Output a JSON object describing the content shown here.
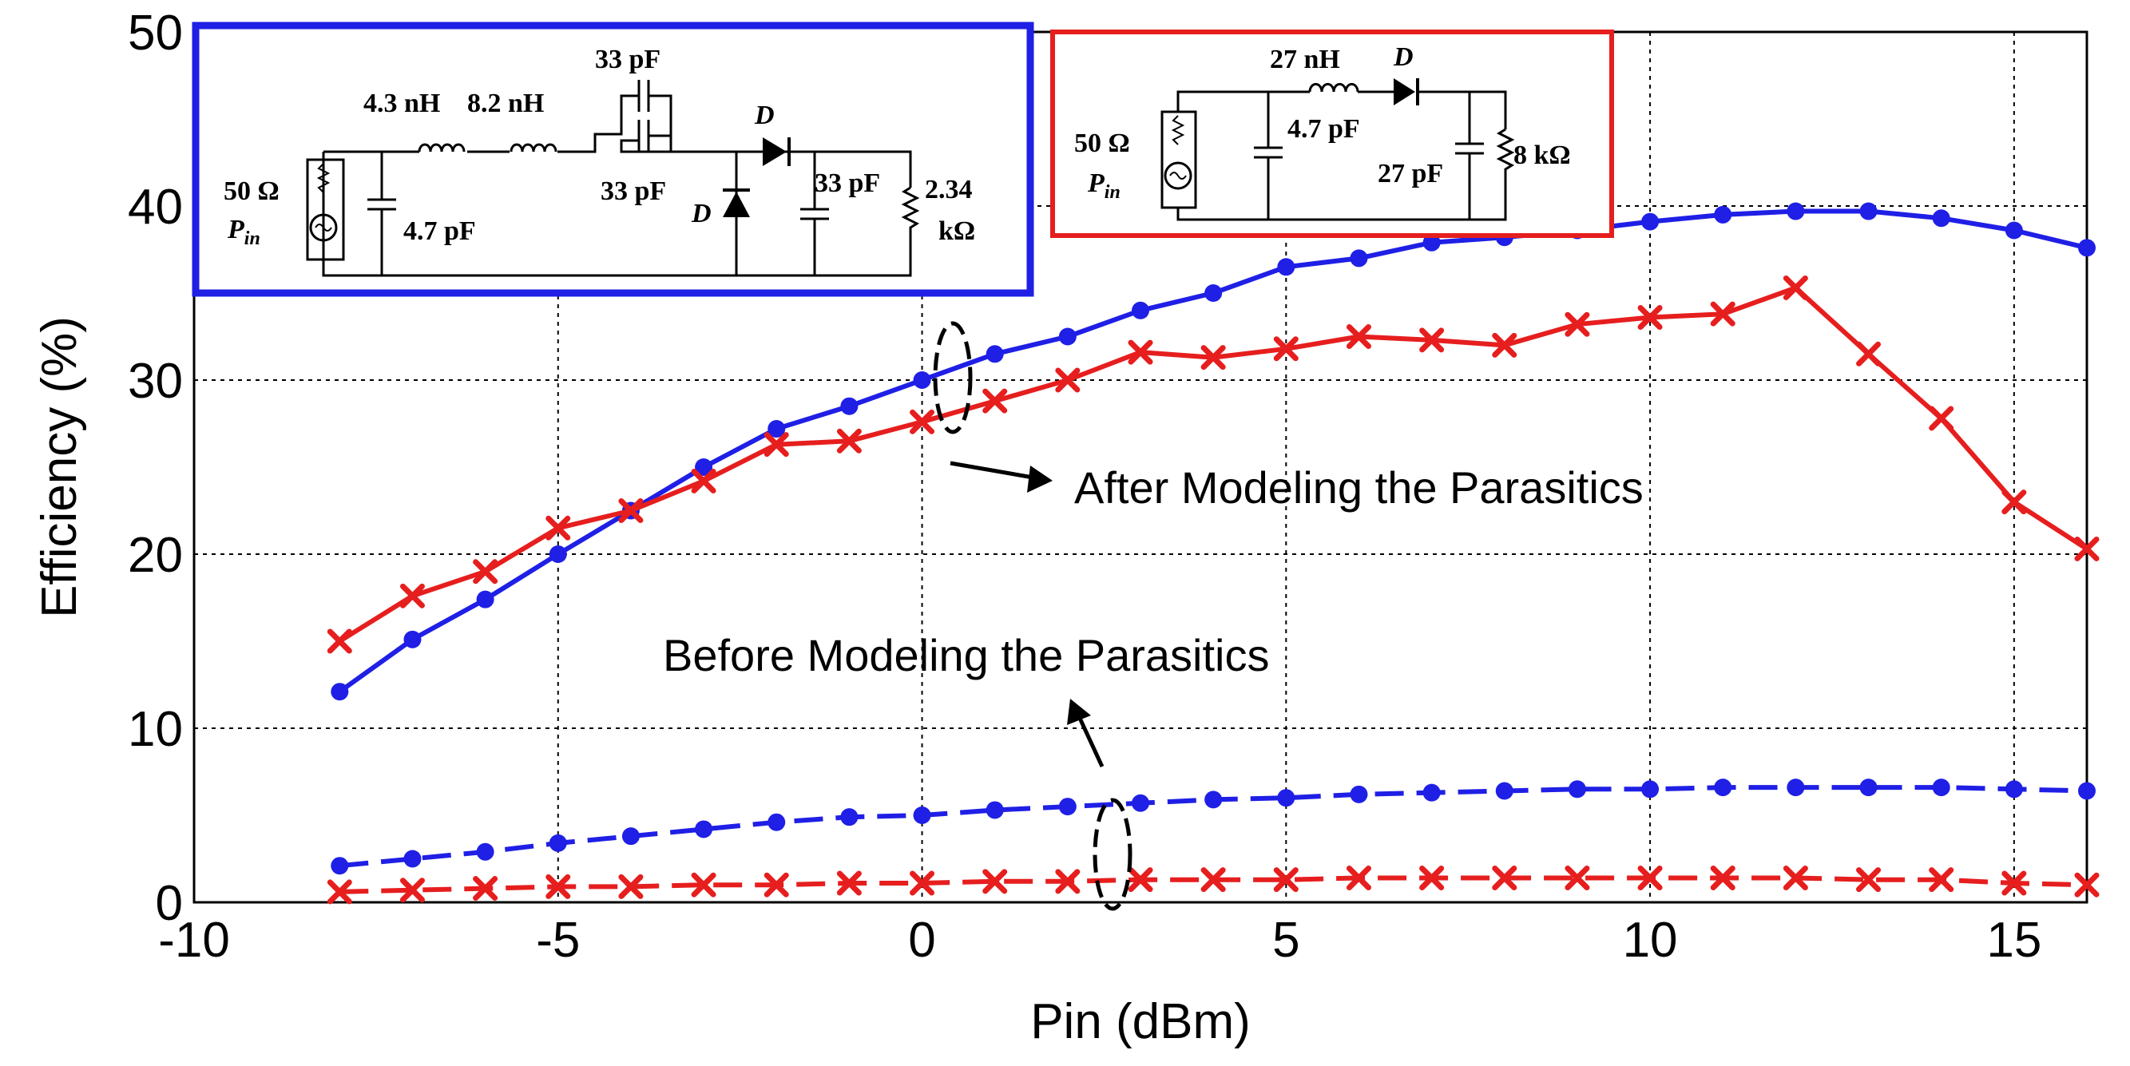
{
  "chart_data": {
    "type": "line",
    "xlabel": "Pin (dBm)",
    "ylabel": "Efficiency (%)",
    "xlim": [
      -10,
      16
    ],
    "ylim": [
      0,
      50
    ],
    "xticks": [
      -10,
      -5,
      0,
      5,
      10,
      15
    ],
    "yticks": [
      0,
      10,
      20,
      30,
      40,
      50
    ],
    "grid": true,
    "x": [
      -8,
      -7,
      -6,
      -5,
      -4,
      -3,
      -2,
      -1,
      0,
      1,
      2,
      3,
      4,
      5,
      6,
      7,
      8,
      9,
      10,
      11,
      12,
      13,
      14,
      15,
      16
    ],
    "series": [
      {
        "name": "After Modeling the Parasitics - circuit 1 (blue)",
        "color": "#1f1fe6",
        "line": "solid",
        "marker": "dot",
        "values": [
          12.1,
          15.1,
          17.4,
          20.0,
          22.5,
          25.0,
          27.2,
          28.5,
          30.0,
          31.5,
          32.5,
          34.0,
          35.0,
          36.5,
          37.0,
          37.9,
          38.2,
          38.6,
          39.1,
          39.5,
          39.7,
          39.7,
          39.3,
          38.6,
          37.6
        ]
      },
      {
        "name": "After Modeling the Parasitics - circuit 2 (red)",
        "color": "#e61e1e",
        "line": "solid",
        "marker": "x",
        "values": [
          15.0,
          17.6,
          19.0,
          21.5,
          22.5,
          24.2,
          26.3,
          26.5,
          27.6,
          28.8,
          30.0,
          31.6,
          31.3,
          31.8,
          32.5,
          32.3,
          32.0,
          33.2,
          33.6,
          33.8,
          35.3,
          31.5,
          27.8,
          23.0,
          20.3
        ]
      },
      {
        "name": "Before Modeling the Parasitics - circuit 1 (blue)",
        "color": "#1f1fe6",
        "line": "dashed",
        "marker": "dot",
        "values": [
          2.1,
          2.5,
          2.9,
          3.4,
          3.8,
          4.2,
          4.6,
          4.9,
          5.0,
          5.3,
          5.5,
          5.7,
          5.9,
          6.0,
          6.2,
          6.3,
          6.4,
          6.5,
          6.5,
          6.6,
          6.6,
          6.6,
          6.6,
          6.5,
          6.4
        ]
      },
      {
        "name": "Before Modeling the Parasitics - circuit 2 (red)",
        "color": "#e61e1e",
        "line": "dashed",
        "marker": "x",
        "values": [
          0.6,
          0.7,
          0.8,
          0.9,
          0.9,
          1.0,
          1.0,
          1.1,
          1.1,
          1.2,
          1.2,
          1.3,
          1.3,
          1.3,
          1.4,
          1.4,
          1.4,
          1.4,
          1.4,
          1.4,
          1.4,
          1.3,
          1.3,
          1.1,
          1.0
        ]
      }
    ],
    "annotations": {
      "after": "After Modeling the Parasitics",
      "before": "Before Modeling the Parasitics"
    }
  },
  "inset_blue": {
    "border_color": "#1f1fe6",
    "l1": "4.3 nH",
    "l2": "8.2 nH",
    "c_series_top": "33 pF",
    "c_series_bottom": "33 pF",
    "diode_series": "D",
    "diode_shunt": "D",
    "c_out": "33 pF",
    "r_load_1": "2.34",
    "r_load_2": "kΩ",
    "c_in": "4.7 pF",
    "source_r": "50 Ω",
    "source_p": "P",
    "source_sub": "in"
  },
  "inset_red": {
    "border_color": "#e61e1e",
    "l1": "27 nH",
    "diode": "D",
    "c_in": "4.7 pF",
    "c_out": "27 pF",
    "r_load": "8 kΩ",
    "source_r": "50 Ω",
    "source_p": "P",
    "source_sub": "in"
  }
}
